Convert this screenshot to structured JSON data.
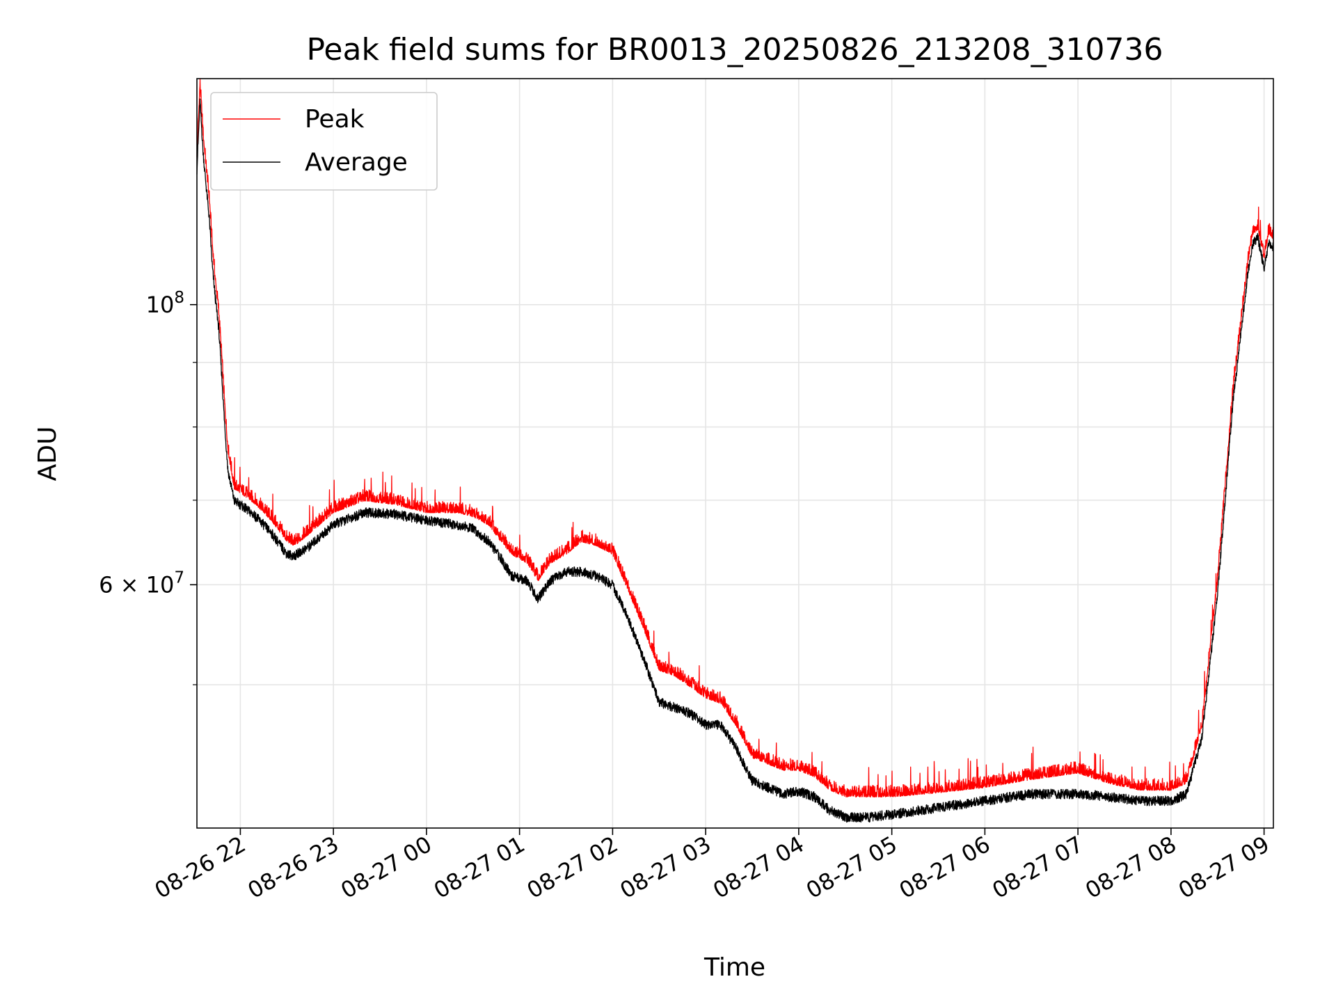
{
  "chart_data": {
    "type": "line",
    "title": "Peak field sums for BR0013_20250826_213208_310736",
    "xlabel": "Time",
    "ylabel": "ADU",
    "yscale": "log",
    "grid": true,
    "legend_position": "upper left",
    "xlim": [
      "2025-08-26 21:32",
      "2025-08-27 09:06"
    ],
    "ylim": [
      38500000,
      151000000
    ],
    "x_ticks": [
      "08-26 22",
      "08-26 23",
      "08-27 00",
      "08-27 01",
      "08-27 02",
      "08-27 03",
      "08-27 04",
      "08-27 05",
      "08-27 06",
      "08-27 07",
      "08-27 08",
      "08-27 09"
    ],
    "y_ticks": [
      {
        "value": 100000000,
        "base": "10",
        "exp": "8"
      },
      {
        "value": 60000000,
        "base": "6 × 10",
        "exp": "7"
      }
    ],
    "y_minor_ticks": [
      50000000,
      70000000,
      80000000,
      90000000
    ],
    "x": [
      "2025-08-26 21:32",
      "2025-08-26 21:34",
      "2025-08-26 21:36",
      "2025-08-26 21:38",
      "2025-08-26 21:40",
      "2025-08-26 21:42",
      "2025-08-26 21:44",
      "2025-08-26 21:46",
      "2025-08-26 21:48",
      "2025-08-26 21:50",
      "2025-08-26 21:52",
      "2025-08-26 21:56",
      "2025-08-26 22:00",
      "2025-08-26 22:10",
      "2025-08-26 22:20",
      "2025-08-26 22:30",
      "2025-08-26 22:35",
      "2025-08-26 22:45",
      "2025-08-26 23:00",
      "2025-08-26 23:20",
      "2025-08-26 23:40",
      "2025-08-27 00:00",
      "2025-08-27 00:20",
      "2025-08-27 00:30",
      "2025-08-27 00:40",
      "2025-08-27 00:48",
      "2025-08-27 00:55",
      "2025-08-27 01:05",
      "2025-08-27 01:12",
      "2025-08-27 01:20",
      "2025-08-27 01:30",
      "2025-08-27 01:40",
      "2025-08-27 01:50",
      "2025-08-27 02:00",
      "2025-08-27 02:10",
      "2025-08-27 02:20",
      "2025-08-27 02:30",
      "2025-08-27 02:40",
      "2025-08-27 02:50",
      "2025-08-27 03:00",
      "2025-08-27 03:10",
      "2025-08-27 03:20",
      "2025-08-27 03:30",
      "2025-08-27 03:40",
      "2025-08-27 03:50",
      "2025-08-27 04:00",
      "2025-08-27 04:10",
      "2025-08-27 04:20",
      "2025-08-27 04:30",
      "2025-08-27 04:45",
      "2025-08-27 05:00",
      "2025-08-27 05:30",
      "2025-08-27 06:00",
      "2025-08-27 06:30",
      "2025-08-27 07:00",
      "2025-08-27 07:20",
      "2025-08-27 07:40",
      "2025-08-27 07:50",
      "2025-08-27 08:00",
      "2025-08-27 08:10",
      "2025-08-27 08:20",
      "2025-08-27 08:30",
      "2025-08-27 08:40",
      "2025-08-27 08:50",
      "2025-08-27 08:53",
      "2025-08-27 08:56",
      "2025-08-27 09:00",
      "2025-08-27 09:03",
      "2025-08-27 09:06"
    ],
    "series": [
      {
        "name": "Peak",
        "color": "#ff0000",
        "values": [
          130000000,
          148000000,
          135000000,
          127000000,
          120000000,
          110000000,
          103000000,
          98000000,
          90000000,
          82000000,
          76000000,
          71000000,
          70500000,
          69000000,
          67000000,
          64500000,
          64000000,
          65500000,
          68000000,
          69500000,
          69000000,
          68000000,
          68000000,
          67500000,
          66500000,
          64500000,
          63000000,
          62000000,
          60000000,
          62000000,
          63000000,
          64500000,
          64000000,
          63000000,
          59000000,
          55000000,
          51000000,
          50500000,
          49500000,
          48500000,
          48000000,
          46000000,
          43500000,
          43000000,
          42500000,
          42500000,
          42000000,
          41000000,
          40500000,
          40500000,
          40500000,
          40800000,
          41200000,
          41800000,
          42300000,
          41500000,
          41000000,
          41000000,
          41000000,
          41500000,
          46000000,
          60000000,
          85000000,
          108000000,
          113000000,
          114000000,
          108000000,
          113000000,
          112000000
        ]
      },
      {
        "name": "Average",
        "color": "#000000",
        "values": [
          128000000,
          145000000,
          132000000,
          124000000,
          117000000,
          107000000,
          101000000,
          96000000,
          88000000,
          80000000,
          74000000,
          70000000,
          69500000,
          68000000,
          66000000,
          63500000,
          63300000,
          64500000,
          67000000,
          68500000,
          68300000,
          67500000,
          67000000,
          66500000,
          65000000,
          63000000,
          61000000,
          60500000,
          58500000,
          60500000,
          61500000,
          61500000,
          61000000,
          60000000,
          56500000,
          52500000,
          48500000,
          48000000,
          47500000,
          46500000,
          46500000,
          44500000,
          42000000,
          41500000,
          41000000,
          41200000,
          40800000,
          39800000,
          39300000,
          39300000,
          39500000,
          40000000,
          40500000,
          41000000,
          41000000,
          40800000,
          40500000,
          40500000,
          40500000,
          41000000,
          45500000,
          59000000,
          84000000,
          107000000,
          112000000,
          113000000,
          107000000,
          112000000,
          111000000
        ]
      }
    ]
  }
}
